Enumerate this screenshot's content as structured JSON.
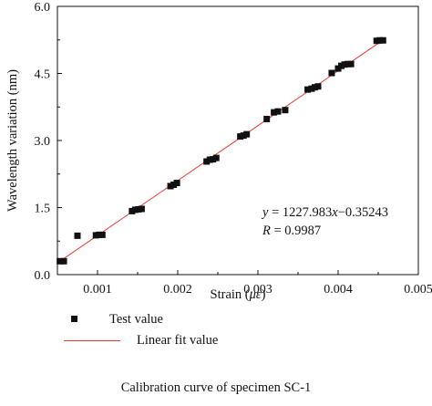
{
  "chart_data": {
    "type": "scatter",
    "xlabel": "Strain (με)",
    "ylabel": "Wavelength variation (nm)",
    "xlim": [
      0.0005,
      0.005
    ],
    "ylim": [
      0.0,
      6.0
    ],
    "x_ticks": [
      "0.001",
      "0.002",
      "0.003",
      "0.004",
      "0.005"
    ],
    "y_ticks": [
      "0.0",
      "1.5",
      "3.0",
      "4.5",
      "6.0"
    ],
    "x_tick_values": [
      0.001,
      0.002,
      0.003,
      0.004,
      0.005
    ],
    "y_tick_values": [
      0.0,
      1.5,
      3.0,
      4.5,
      6.0
    ],
    "grid": false,
    "series": [
      {
        "name": "Test value",
        "kind": "points",
        "color": "#111111",
        "x": [
          0.00053,
          0.00058,
          0.00075,
          0.00098,
          0.00102,
          0.00106,
          0.00143,
          0.00147,
          0.00151,
          0.00155,
          0.00191,
          0.00195,
          0.00199,
          0.00236,
          0.0024,
          0.00244,
          0.00248,
          0.00278,
          0.00282,
          0.00286,
          0.00311,
          0.0032,
          0.00325,
          0.00334,
          0.00362,
          0.00367,
          0.00371,
          0.00375,
          0.00392,
          0.004,
          0.00404,
          0.00408,
          0.00412,
          0.00416,
          0.00448,
          0.00452,
          0.00456
        ],
        "y": [
          0.3,
          0.3,
          0.87,
          0.88,
          0.89,
          0.89,
          1.42,
          1.45,
          1.46,
          1.47,
          1.98,
          2.01,
          2.05,
          2.53,
          2.57,
          2.58,
          2.61,
          3.09,
          3.11,
          3.14,
          3.48,
          3.63,
          3.65,
          3.68,
          4.14,
          4.16,
          4.19,
          4.21,
          4.51,
          4.61,
          4.67,
          4.7,
          4.71,
          4.71,
          5.23,
          5.24,
          5.24
        ]
      },
      {
        "name": "Linear fit value",
        "kind": "line",
        "color": "#e83a32",
        "slope": 1227.983,
        "intercept": -0.35243
      }
    ],
    "annotations": [
      "y = 1227.983x−0.35243",
      "R = 0.9987"
    ],
    "legend_position": "below"
  },
  "legend": {
    "test_label": "Test value",
    "fit_label": "Linear fit value"
  },
  "annotation": {
    "equation_prefix": "y",
    "equation_eq": " = 1227.983",
    "equation_x": "x",
    "equation_rest": "−0.35243",
    "r_label": "R",
    "r_value": " = 0.9987"
  },
  "axis_labels": {
    "x_prefix": "Strain (",
    "x_unit": "με",
    "x_suffix": ")",
    "y": "Wavelength variation (nm)"
  },
  "caption": "Calibration curve of specimen SC-1"
}
